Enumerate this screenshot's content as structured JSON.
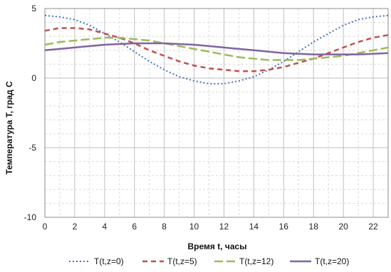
{
  "chart_data": {
    "type": "line",
    "xlabel": "Время t, часы",
    "ylabel": "Температура T, град C",
    "xlim": [
      0,
      23
    ],
    "ylim": [
      -10,
      5
    ],
    "xticks": [
      "0",
      "2",
      "4",
      "6",
      "8",
      "10",
      "12",
      "14",
      "16",
      "18",
      "20",
      "22"
    ],
    "yticks": [
      "5",
      "0",
      "-5",
      "-10"
    ],
    "x_major_step": 2,
    "x_minor_step": 1,
    "y_major_step": 5,
    "y_minor_step": 1,
    "grid": true,
    "legend_position": "bottom",
    "x": [
      0,
      1,
      2,
      3,
      4,
      5,
      6,
      7,
      8,
      9,
      10,
      11,
      12,
      13,
      14,
      15,
      16,
      17,
      18,
      19,
      20,
      21,
      22,
      23
    ],
    "series": [
      {
        "name": "T(t,z=0)",
        "color": "#4472c4",
        "dash": "dotted",
        "values": [
          4.5,
          4.4,
          4.2,
          3.8,
          3.2,
          2.6,
          1.9,
          1.2,
          0.6,
          0.1,
          -0.2,
          -0.4,
          -0.4,
          -0.2,
          0.1,
          0.6,
          1.2,
          1.9,
          2.6,
          3.2,
          3.8,
          4.2,
          4.4,
          4.5
        ]
      },
      {
        "name": "T(t,z=5)",
        "color": "#c0504d",
        "dash": "dashed",
        "values": [
          3.4,
          3.6,
          3.6,
          3.5,
          3.2,
          2.9,
          2.5,
          2.0,
          1.6,
          1.2,
          0.9,
          0.7,
          0.6,
          0.5,
          0.5,
          0.6,
          0.8,
          1.1,
          1.4,
          1.8,
          2.2,
          2.6,
          2.9,
          3.1
        ]
      },
      {
        "name": "T(t,z=12)",
        "color": "#9bbb59",
        "dash": "longdash",
        "values": [
          2.4,
          2.6,
          2.7,
          2.8,
          2.9,
          2.9,
          2.8,
          2.7,
          2.5,
          2.3,
          2.1,
          1.9,
          1.7,
          1.5,
          1.4,
          1.3,
          1.3,
          1.3,
          1.4,
          1.5,
          1.6,
          1.8,
          2.0,
          2.2
        ]
      },
      {
        "name": "T(t,z=20)",
        "color": "#8064a2",
        "dash": "solid",
        "values": [
          2.0,
          2.1,
          2.2,
          2.3,
          2.4,
          2.45,
          2.5,
          2.5,
          2.5,
          2.45,
          2.4,
          2.3,
          2.2,
          2.1,
          2.0,
          1.9,
          1.8,
          1.75,
          1.7,
          1.7,
          1.7,
          1.7,
          1.75,
          1.8
        ]
      }
    ]
  }
}
